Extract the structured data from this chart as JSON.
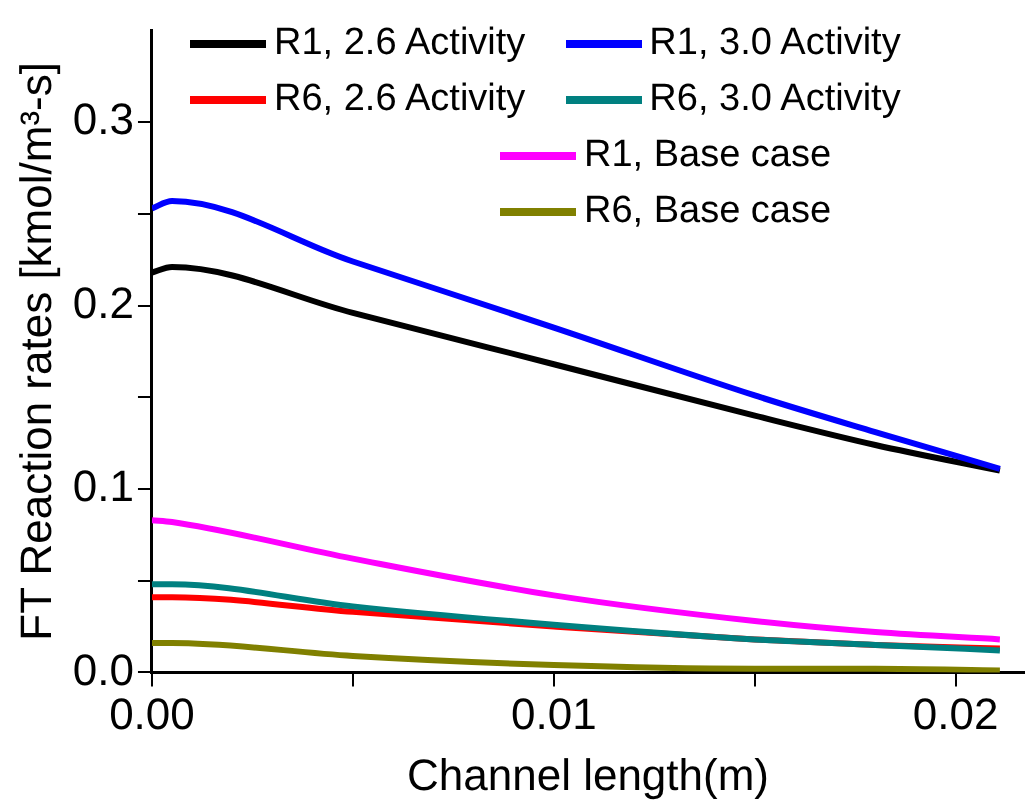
{
  "chart_data": {
    "type": "line",
    "xlabel": "Channel length(m)",
    "ylabel": "FT Reaction rates [kmol/m³-s]",
    "xlim": [
      0,
      0.0217
    ],
    "ylim": [
      0,
      0.35
    ],
    "xticks": [
      {
        "value": 0,
        "label": "0.00"
      },
      {
        "value": 0.005,
        "label": null
      },
      {
        "value": 0.01,
        "label": "0.01"
      },
      {
        "value": 0.015,
        "label": null
      },
      {
        "value": 0.02,
        "label": "0.02"
      }
    ],
    "yticks": [
      {
        "value": 0,
        "label": "0.0"
      },
      {
        "value": 0.05,
        "label": null
      },
      {
        "value": 0.1,
        "label": "0.1"
      },
      {
        "value": 0.15,
        "label": null
      },
      {
        "value": 0.2,
        "label": "0.2"
      },
      {
        "value": 0.25,
        "label": null
      },
      {
        "value": 0.3,
        "label": "0.3"
      }
    ],
    "x": [
      0,
      0.0005,
      0.005,
      0.01,
      0.015,
      0.018,
      0.0211
    ],
    "grid": false,
    "legend": "top right",
    "marker": "none",
    "line_style": "solid",
    "series": [
      {
        "name": "R1, 2.6 Activity",
        "color": "#000000",
        "values": [
          0.218,
          0.221,
          0.196,
          0.168,
          0.14,
          0.124,
          0.11
        ]
      },
      {
        "name": "R1, 3.0 Activity",
        "color": "#0000ff",
        "values": [
          0.253,
          0.257,
          0.224,
          0.188,
          0.151,
          0.131,
          0.111
        ]
      },
      {
        "name": "R6, 2.6 Activity",
        "color": "#ff0000",
        "values": [
          0.041,
          0.041,
          0.033,
          0.025,
          0.018,
          0.015,
          0.013
        ]
      },
      {
        "name": "R6, 3.0 Activity",
        "color": "#008080",
        "values": [
          0.048,
          0.048,
          0.036,
          0.026,
          0.018,
          0.015,
          0.012
        ]
      },
      {
        "name": "R1, Base case",
        "color": "#ff00ff",
        "values": [
          0.083,
          0.082,
          0.062,
          0.042,
          0.028,
          0.022,
          0.018
        ]
      },
      {
        "name": "R6, Base case",
        "color": "#808000",
        "values": [
          0.016,
          0.016,
          0.009,
          0.004,
          0.002,
          0.002,
          0.001
        ]
      }
    ]
  }
}
